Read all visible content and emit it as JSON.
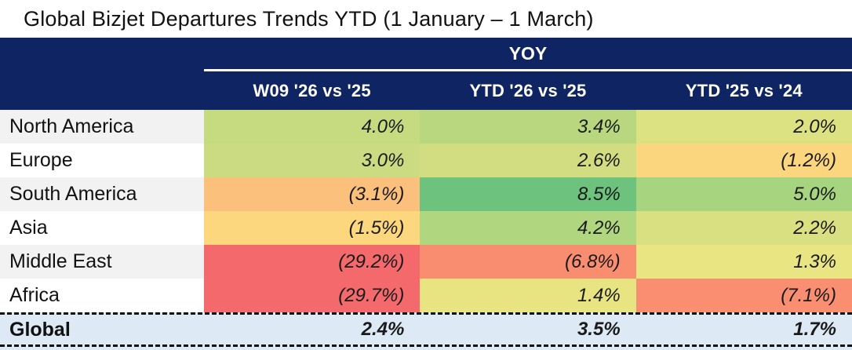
{
  "title": "Global Bizjet Departures Trends YTD (1 January – 1 March)",
  "colors": {
    "header_bg": "#0f2563",
    "header_text": "#ffffff",
    "total_row_bg": "#dde9f4",
    "row_label_bg_odd": "#f2f2f2",
    "row_label_bg_even": "#ffffff",
    "heatmap_red": "#f4696c",
    "heatmap_yellow": "#ebe683",
    "heatmap_green": "#6dc27d"
  },
  "table": {
    "group_header": "YOY",
    "columns": [
      "W09 '26 vs '25",
      "YTD '26 vs '25",
      "YTD '25 vs '24"
    ],
    "rows": [
      {
        "label": "North America",
        "label_bg": "#f2f2f2",
        "cells": [
          {
            "text": "4.0%",
            "bg": "#c6da80"
          },
          {
            "text": "3.4%",
            "bg": "#b8d77f"
          },
          {
            "text": "2.0%",
            "bg": "#dce182"
          }
        ]
      },
      {
        "label": "Europe",
        "label_bg": "#ffffff",
        "cells": [
          {
            "text": "3.0%",
            "bg": "#cadb81"
          },
          {
            "text": "2.6%",
            "bg": "#d2dd81"
          },
          {
            "text": "(1.2%)",
            "bg": "#fcd67e"
          }
        ]
      },
      {
        "label": "South America",
        "label_bg": "#f2f2f2",
        "cells": [
          {
            "text": "(3.1%)",
            "bg": "#fbc07b"
          },
          {
            "text": "8.5%",
            "bg": "#6dc27d"
          },
          {
            "text": "5.0%",
            "bg": "#a6d47f"
          }
        ]
      },
      {
        "label": "Asia",
        "label_bg": "#ffffff",
        "cells": [
          {
            "text": "(1.5%)",
            "bg": "#fcd77e"
          },
          {
            "text": "4.2%",
            "bg": "#b0d67f"
          },
          {
            "text": "2.2%",
            "bg": "#d8e081"
          }
        ]
      },
      {
        "label": "Middle East",
        "label_bg": "#f2f2f2",
        "cells": [
          {
            "text": "(29.2%)",
            "bg": "#f4696c"
          },
          {
            "text": "(6.8%)",
            "bg": "#f98d70"
          },
          {
            "text": "1.3%",
            "bg": "#e9e583"
          }
        ]
      },
      {
        "label": "Africa",
        "label_bg": "#ffffff",
        "cells": [
          {
            "text": "(29.7%)",
            "bg": "#f46a6c"
          },
          {
            "text": "1.4%",
            "bg": "#e7e481"
          },
          {
            "text": "(7.1%)",
            "bg": "#f98e70"
          }
        ]
      }
    ],
    "total": {
      "label": "Global",
      "bg": "#dde9f4",
      "cells": [
        {
          "text": "2.4%"
        },
        {
          "text": "3.5%"
        },
        {
          "text": "1.7%"
        }
      ]
    }
  },
  "chart_data": {
    "type": "table",
    "title": "Global Bizjet Departures Trends YTD (1 January – 1 March)",
    "group_header": "YOY",
    "columns": [
      "W09 '26 vs '25",
      "YTD '26 vs '25",
      "YTD '25 vs '24"
    ],
    "row_labels": [
      "North America",
      "Europe",
      "South America",
      "Asia",
      "Middle East",
      "Africa",
      "Global"
    ],
    "values_pct": [
      [
        4.0,
        3.4,
        2.0
      ],
      [
        3.0,
        2.6,
        -1.2
      ],
      [
        -3.1,
        8.5,
        5.0
      ],
      [
        -1.5,
        4.2,
        2.2
      ],
      [
        -29.2,
        -6.8,
        1.3
      ],
      [
        -29.7,
        1.4,
        -7.1
      ],
      [
        2.4,
        3.5,
        1.7
      ]
    ],
    "notes": "Negative values shown in parentheses; cells conditionally formatted on a red-yellow-green heatmap scale; Global row is a bold total row on light blue with dashed borders."
  }
}
